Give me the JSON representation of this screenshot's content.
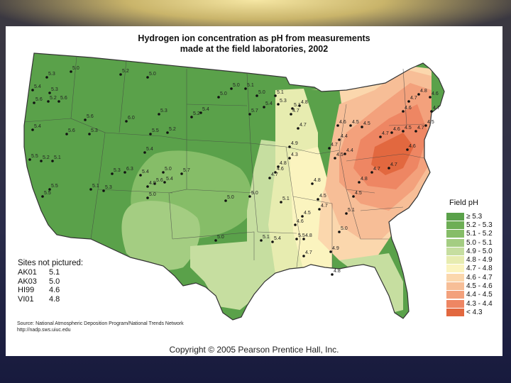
{
  "map": {
    "title_line1": "Hydrogen ion concentration as pH from measurements",
    "title_line2": "made at the field laboratories, 2002",
    "colors": {
      "5.3+": "#5aa14a",
      "5.2-5.3": "#6dae55",
      "5.1-5.2": "#86bd68",
      "5.0-5.1": "#a4cd82",
      "4.9-5.0": "#c6dea0",
      "4.8-4.9": "#e7ecb0",
      "4.7-4.8": "#fbf4bf",
      "4.6-4.7": "#fbd7ad",
      "4.5-4.6": "#f7be97",
      "4.4-4.5": "#f3a17c",
      "4.3-4.4": "#ee8663",
      "<4.3": "#e2683f"
    },
    "site_values": [
      {
        "v": "5.3"
      },
      {
        "v": "5.0"
      },
      {
        "v": "5.4"
      },
      {
        "v": "5.3"
      },
      {
        "v": "5.6"
      },
      {
        "v": "5.6"
      },
      {
        "v": "5.2"
      },
      {
        "v": "5.4"
      },
      {
        "v": "5.6"
      },
      {
        "v": "5.3"
      },
      {
        "v": "5.5"
      },
      {
        "v": "5.2"
      },
      {
        "v": "5.1"
      },
      {
        "v": "5.5"
      },
      {
        "v": "5.5"
      },
      {
        "v": "5.6"
      },
      {
        "v": "5.2"
      },
      {
        "v": "5.0"
      },
      {
        "v": "6.0"
      },
      {
        "v": "5.3"
      },
      {
        "v": "5.5"
      },
      {
        "v": "5.2"
      },
      {
        "v": "5.4"
      },
      {
        "v": "6.3"
      },
      {
        "v": "5.3"
      },
      {
        "v": "5.1"
      },
      {
        "v": "5.3"
      },
      {
        "v": "5.4"
      },
      {
        "v": "5.6"
      },
      {
        "v": "5.4"
      },
      {
        "v": "5.0"
      },
      {
        "v": "4.9"
      },
      {
        "v": "5.0"
      },
      {
        "v": "5.7"
      },
      {
        "v": "5.2"
      },
      {
        "v": "5.4"
      },
      {
        "v": "5.0"
      },
      {
        "v": "5.0"
      },
      {
        "v": "5.1"
      },
      {
        "v": "5.0"
      },
      {
        "v": "5.1"
      },
      {
        "v": "5.7"
      },
      {
        "v": "5.4"
      },
      {
        "v": "5.3"
      },
      {
        "v": "4.8"
      },
      {
        "v": "5.1"
      },
      {
        "v": "4.7"
      },
      {
        "v": "4.7"
      },
      {
        "v": "4.9"
      },
      {
        "v": "4.3"
      },
      {
        "v": "4.8"
      },
      {
        "v": "4.6"
      },
      {
        "v": "4.7"
      },
      {
        "v": "5.1"
      },
      {
        "v": "5.0"
      },
      {
        "v": "5.0"
      },
      {
        "v": "5.0"
      },
      {
        "v": "5.1"
      },
      {
        "v": "5.4"
      },
      {
        "v": "5.5"
      },
      {
        "v": "4.8"
      },
      {
        "v": "4.6"
      },
      {
        "v": "4.5"
      },
      {
        "v": "4.7"
      },
      {
        "v": "4.5"
      },
      {
        "v": "4.8"
      },
      {
        "v": "4.5"
      },
      {
        "v": "4.7"
      },
      {
        "v": "4.4"
      },
      {
        "v": "4.4"
      },
      {
        "v": "4.6"
      },
      {
        "v": "4.5"
      },
      {
        "v": "4.5"
      },
      {
        "v": "4.7"
      },
      {
        "v": "4.6"
      },
      {
        "v": "4.5"
      },
      {
        "v": "4.7"
      },
      {
        "v": "4.6"
      },
      {
        "v": "4.7"
      },
      {
        "v": "4.8"
      },
      {
        "v": "4.6"
      },
      {
        "v": "4.7"
      },
      {
        "v": "4.5"
      },
      {
        "v": "4.6"
      },
      {
        "v": "4.7"
      },
      {
        "v": "4.7"
      },
      {
        "v": "4.8"
      },
      {
        "v": "4.5"
      },
      {
        "v": "5.1"
      },
      {
        "v": "5.0"
      },
      {
        "v": "4.9"
      },
      {
        "v": "4.7"
      },
      {
        "v": "4.8"
      }
    ]
  },
  "legend": {
    "title": "Field pH",
    "items": [
      {
        "label": "≥ 5.3",
        "color": "#5aa14a"
      },
      {
        "label": "5.2 - 5.3",
        "color": "#6dae55"
      },
      {
        "label": "5.1 - 5.2",
        "color": "#86bd68"
      },
      {
        "label": "5.0 - 5.1",
        "color": "#a4cd82"
      },
      {
        "label": "4.9 - 5.0",
        "color": "#c6dea0"
      },
      {
        "label": "4.8 - 4.9",
        "color": "#e7ecb0"
      },
      {
        "label": "4.7 - 4.8",
        "color": "#fbf4bf"
      },
      {
        "label": "4.6 - 4.7",
        "color": "#fbd7ad"
      },
      {
        "label": "4.5 - 4.6",
        "color": "#f7be97"
      },
      {
        "label": "4.4 - 4.5",
        "color": "#f3a17c"
      },
      {
        "label": "4.3 - 4.4",
        "color": "#ee8663"
      },
      {
        "label": "< 4.3",
        "color": "#e2683f"
      }
    ]
  },
  "sites_not_pictured": {
    "title": "Sites not pictured:",
    "rows": [
      {
        "id": "AK01",
        "value": "5.1"
      },
      {
        "id": "AK03",
        "value": "5.0"
      },
      {
        "id": "HI99",
        "value": "4.6"
      },
      {
        "id": "VI01",
        "value": "4.8"
      }
    ]
  },
  "source": {
    "line1": "Source: National Atmospheric Deposition Program/National Trends Network",
    "line2": "http://nadp.sws.uiuc.edu"
  },
  "copyright": "Copyright © 2005 Pearson Prentice Hall, Inc."
}
